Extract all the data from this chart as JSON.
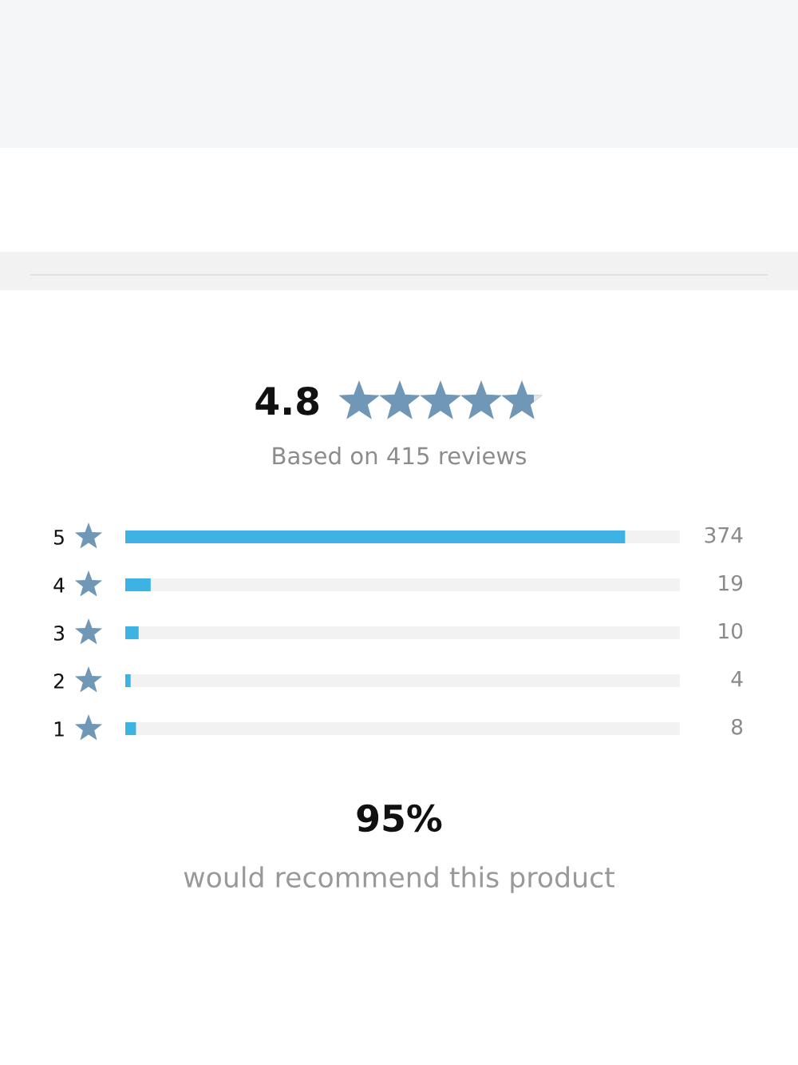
{
  "chart_data": {
    "type": "bar",
    "orientation": "horizontal",
    "title": "4.8",
    "subtitle": "Based on 415 reviews",
    "categories": [
      "5",
      "4",
      "3",
      "2",
      "1"
    ],
    "values": [
      374,
      19,
      10,
      4,
      8
    ],
    "color": "#3db3e3",
    "xlim": [
      0,
      415
    ],
    "data_labels": true,
    "annotations": [
      "95%",
      "would recommend this product"
    ]
  }
}
